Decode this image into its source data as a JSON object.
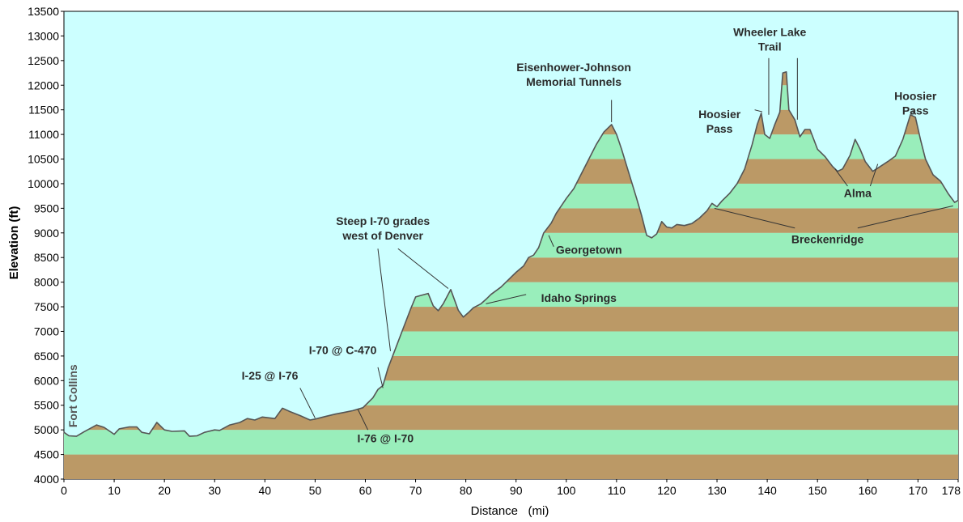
{
  "chart_data": {
    "type": "area",
    "xlabel": "Distance   (mi)",
    "ylabel": "Elevation (ft)",
    "xlim": [
      0,
      178
    ],
    "ylim": [
      4000,
      13500
    ],
    "x_ticks": [
      0,
      10,
      20,
      30,
      40,
      50,
      60,
      70,
      80,
      90,
      100,
      110,
      120,
      130,
      140,
      150,
      160,
      170,
      178
    ],
    "y_ticks": [
      4000,
      4500,
      5000,
      5500,
      6000,
      6500,
      7000,
      7500,
      8000,
      8500,
      9000,
      9500,
      10000,
      10500,
      11000,
      11500,
      12000,
      12500,
      13000,
      13500
    ],
    "band_step": 500,
    "colors": {
      "sky": "#ccffff",
      "band_green": "#99eebb",
      "band_brown": "#bb9966",
      "profile_line": "#555555",
      "leader": "#333333"
    },
    "profile": [
      [
        0,
        4950
      ],
      [
        1,
        4880
      ],
      [
        2.5,
        4870
      ],
      [
        4,
        4960
      ],
      [
        6.5,
        5100
      ],
      [
        8,
        5050
      ],
      [
        10,
        4910
      ],
      [
        11,
        5020
      ],
      [
        13,
        5060
      ],
      [
        14.5,
        5060
      ],
      [
        15.5,
        4950
      ],
      [
        17,
        4920
      ],
      [
        18.5,
        5150
      ],
      [
        20,
        5000
      ],
      [
        21.5,
        4970
      ],
      [
        24,
        4980
      ],
      [
        25,
        4870
      ],
      [
        26.5,
        4880
      ],
      [
        28,
        4950
      ],
      [
        30,
        5000
      ],
      [
        31,
        4990
      ],
      [
        33,
        5100
      ],
      [
        35,
        5150
      ],
      [
        36.5,
        5230
      ],
      [
        38,
        5200
      ],
      [
        39.5,
        5260
      ],
      [
        42,
        5230
      ],
      [
        43.5,
        5440
      ],
      [
        45,
        5370
      ],
      [
        47,
        5290
      ],
      [
        49,
        5200
      ],
      [
        50,
        5220
      ],
      [
        52,
        5270
      ],
      [
        54,
        5320
      ],
      [
        56,
        5360
      ],
      [
        57.5,
        5390
      ],
      [
        59.5,
        5450
      ],
      [
        61.5,
        5650
      ],
      [
        62.5,
        5820
      ],
      [
        63.5,
        5900
      ],
      [
        64.5,
        6250
      ],
      [
        66,
        6650
      ],
      [
        67.5,
        7050
      ],
      [
        69,
        7450
      ],
      [
        70,
        7700
      ],
      [
        71,
        7730
      ],
      [
        72.5,
        7770
      ],
      [
        73.5,
        7520
      ],
      [
        74.5,
        7420
      ],
      [
        75.5,
        7560
      ],
      [
        77,
        7850
      ],
      [
        78.5,
        7430
      ],
      [
        79.5,
        7290
      ],
      [
        80.5,
        7380
      ],
      [
        81.5,
        7480
      ],
      [
        83,
        7560
      ],
      [
        84,
        7650
      ],
      [
        85,
        7750
      ],
      [
        87,
        7900
      ],
      [
        88.5,
        8050
      ],
      [
        90,
        8200
      ],
      [
        91.5,
        8330
      ],
      [
        92.5,
        8500
      ],
      [
        93.5,
        8550
      ],
      [
        94.5,
        8700
      ],
      [
        95.5,
        9000
      ],
      [
        97,
        9200
      ],
      [
        98,
        9400
      ],
      [
        100,
        9700
      ],
      [
        101.5,
        9900
      ],
      [
        103,
        10200
      ],
      [
        104.5,
        10500
      ],
      [
        106,
        10800
      ],
      [
        107.5,
        11050
      ],
      [
        109,
        11200
      ],
      [
        110,
        11000
      ],
      [
        111,
        10700
      ],
      [
        112.5,
        10200
      ],
      [
        114,
        9700
      ],
      [
        115,
        9350
      ],
      [
        116,
        8950
      ],
      [
        117,
        8900
      ],
      [
        118,
        8980
      ],
      [
        119,
        9230
      ],
      [
        120,
        9120
      ],
      [
        121,
        9100
      ],
      [
        122,
        9170
      ],
      [
        123.5,
        9150
      ],
      [
        125,
        9190
      ],
      [
        126.5,
        9300
      ],
      [
        128,
        9450
      ],
      [
        129,
        9600
      ],
      [
        130,
        9530
      ],
      [
        131,
        9650
      ],
      [
        132.5,
        9800
      ],
      [
        134,
        10000
      ],
      [
        135.5,
        10300
      ],
      [
        137,
        10800
      ],
      [
        138,
        11200
      ],
      [
        138.8,
        11430
      ],
      [
        139.5,
        11000
      ],
      [
        140.5,
        10920
      ],
      [
        141.5,
        11200
      ],
      [
        142.5,
        11450
      ],
      [
        143.1,
        12250
      ],
      [
        143.8,
        12270
      ],
      [
        144.3,
        11500
      ],
      [
        145.5,
        11300
      ],
      [
        146.5,
        10950
      ],
      [
        147.5,
        11100
      ],
      [
        148.5,
        11100
      ],
      [
        150,
        10700
      ],
      [
        151.5,
        10550
      ],
      [
        153,
        10350
      ],
      [
        154,
        10250
      ],
      [
        155,
        10300
      ],
      [
        156.5,
        10580
      ],
      [
        157.5,
        10900
      ],
      [
        158.5,
        10700
      ],
      [
        159.5,
        10450
      ],
      [
        161,
        10250
      ],
      [
        162.5,
        10350
      ],
      [
        164,
        10450
      ],
      [
        165.5,
        10560
      ],
      [
        167,
        10900
      ],
      [
        168.5,
        11400
      ],
      [
        169.5,
        11350
      ],
      [
        170.5,
        10900
      ],
      [
        171.5,
        10500
      ],
      [
        173,
        10180
      ],
      [
        174.5,
        10050
      ],
      [
        176,
        9800
      ],
      [
        177.3,
        9620
      ],
      [
        178,
        9660
      ]
    ],
    "annotations": [
      {
        "lines": [
          "Fort Collins"
        ],
        "vertical": true,
        "text_at": [
          1.8,
          5050
        ]
      },
      {
        "lines": [
          "I-25 @ I-76"
        ],
        "text_at": [
          41,
          6020
        ],
        "point": [
          50,
          5240
        ],
        "leader_from": [
          47,
          5850
        ]
      },
      {
        "lines": [
          "I-76 @ I-70"
        ],
        "text_at": [
          64,
          4750
        ],
        "point": [
          58.5,
          5420
        ],
        "leader_from": [
          60.5,
          5000
        ]
      },
      {
        "lines": [
          "I-70 @ C-470"
        ],
        "text_at": [
          55.5,
          6540
        ],
        "point": [
          63.5,
          5850
        ],
        "leader_from": [
          62.5,
          6270
        ]
      },
      {
        "lines": [
          "Steep I-70 grades",
          "west of Denver"
        ],
        "text_at": [
          63.5,
          9160
        ],
        "point": [
          65,
          6600
        ],
        "leader_from": [
          62.5,
          8680
        ]
      },
      {
        "lines": [],
        "point": [
          76.5,
          7870
        ],
        "leader_from": [
          66.5,
          8680
        ]
      },
      {
        "lines": [
          "Georgetown"
        ],
        "text_at": [
          104.5,
          8580
        ],
        "point": [
          96.5,
          8950
        ],
        "leader_from": [
          97.5,
          8720
        ]
      },
      {
        "lines": [
          "Idaho Springs"
        ],
        "text_at": [
          102.5,
          7600
        ],
        "point": [
          84,
          7560
        ],
        "leader_from": [
          92,
          7750
        ]
      },
      {
        "lines": [
          "Eisenhower-Johnson",
          "Memorial Tunnels"
        ],
        "text_at": [
          101.5,
          12280
        ],
        "point": [
          109,
          11250
        ],
        "leader_from": [
          109,
          11700
        ]
      },
      {
        "lines": [
          "Hoosier",
          "Pass"
        ],
        "text_at": [
          130.5,
          11330
        ],
        "point": [
          139,
          11460
        ],
        "leader_from": [
          137.5,
          11500
        ]
      },
      {
        "lines": [
          "Wheeler Lake",
          "Trail"
        ],
        "text_at": [
          140.5,
          13000
        ],
        "point": [
          140.3,
          11400
        ],
        "leader_from": [
          140.3,
          12550
        ]
      },
      {
        "lines": [],
        "point": [
          146,
          11300
        ],
        "leader_from": [
          146,
          12550
        ]
      },
      {
        "lines": [
          "Hoosier",
          "Pass"
        ],
        "text_at": [
          169.5,
          11700
        ],
        "point": [
          169,
          11400
        ],
        "leader_from": [
          169,
          11500
        ]
      },
      {
        "lines": [
          "Alma"
        ],
        "text_at": [
          158,
          9730
        ],
        "point": [
          153.5,
          10300
        ],
        "leader_from": [
          156,
          9950
        ]
      },
      {
        "lines": [],
        "point": [
          162,
          10400
        ],
        "leader_from": [
          160.5,
          9950
        ]
      },
      {
        "lines": [
          "Breckenridge"
        ],
        "text_at": [
          152,
          8790
        ],
        "point": [
          129.5,
          9500
        ],
        "leader_from": [
          145.5,
          9100
        ]
      },
      {
        "lines": [],
        "point": [
          177,
          9550
        ],
        "leader_from": [
          158,
          9100
        ]
      }
    ]
  }
}
